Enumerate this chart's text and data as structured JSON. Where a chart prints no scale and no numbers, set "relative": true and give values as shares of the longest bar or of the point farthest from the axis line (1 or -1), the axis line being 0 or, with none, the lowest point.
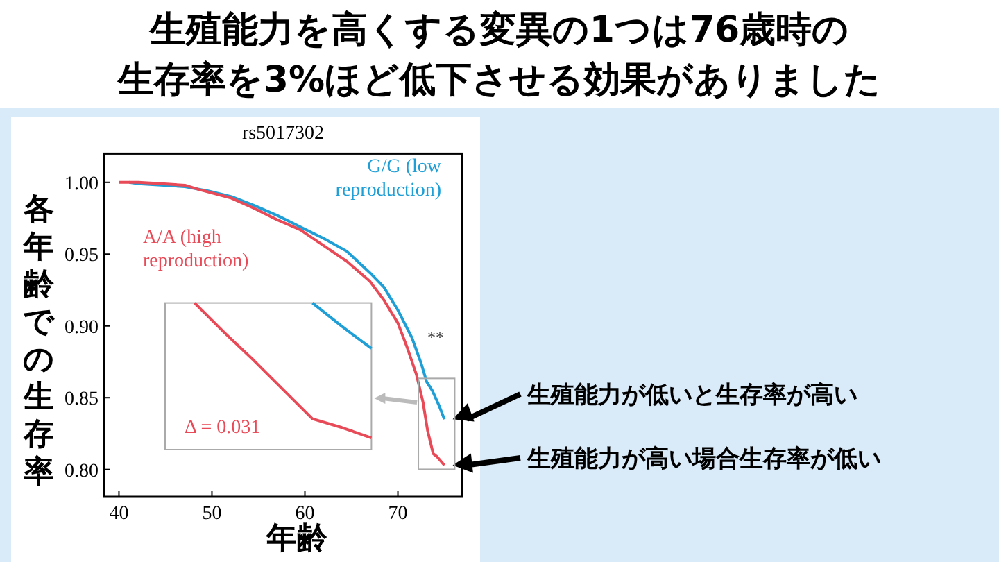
{
  "chart_data": [
    {
      "type": "line",
      "title": "生殖能力を高くする変異の1つは76歳時の生存率を3%ほど低下させる効果がありました",
      "subtitle": "rs5017302",
      "xlabel": "年齢",
      "ylabel": "各年齢での生存率",
      "xlim": [
        38.4,
        76.9
      ],
      "ylim": [
        0.781,
        1.02
      ],
      "xticks": [
        40,
        50,
        60,
        70
      ],
      "yticks": [
        {
          "value": 0.8,
          "label": "0.80"
        },
        {
          "value": 0.85,
          "label": "0.85"
        },
        {
          "value": 0.9,
          "label": "0.90"
        },
        {
          "value": 0.95,
          "label": "0.95"
        },
        {
          "value": 1,
          "label": "1.00"
        }
      ],
      "grid": false,
      "series": [
        {
          "name": "G/G (low reproduction)",
          "color": "#1f9fd6",
          "x": [
            41.1,
            42.1,
            47.1,
            49.6,
            52.1,
            54.5,
            57,
            59.5,
            62,
            64.5,
            67,
            68.5,
            70,
            71.5,
            72.5,
            73.1,
            73.7,
            74.4,
            75
          ],
          "values": [
            1,
            0.999,
            0.997,
            0.994,
            0.99,
            0.984,
            0.977,
            0.969,
            0.961,
            0.952,
            0.937,
            0.927,
            0.911,
            0.892,
            0.874,
            0.861,
            0.855,
            0.845,
            0.835
          ]
        },
        {
          "name": "A/A (high reproduction)",
          "color": "#e84a57",
          "x": [
            40,
            42.1,
            44.6,
            47.1,
            48.6,
            52.1,
            54.5,
            57,
            59.5,
            62,
            64.5,
            67,
            68.5,
            70,
            71,
            72,
            72.7,
            73.2,
            73.8,
            74.2,
            75
          ],
          "values": [
            1,
            1,
            0.999,
            0.998,
            0.995,
            0.989,
            0.982,
            0.974,
            0.967,
            0.956,
            0.945,
            0.931,
            0.918,
            0.902,
            0.885,
            0.866,
            0.847,
            0.827,
            0.811,
            0.809,
            0.803
          ]
        }
      ],
      "annotations": [
        "**",
        "生殖能力が低いと生存率が高い",
        "生殖能力が高い場合生存率が低い"
      ]
    },
    {
      "type": "line",
      "relative": true,
      "categories": [
        null,
        null,
        null,
        null,
        null,
        null,
        null,
        null
      ],
      "series": [
        {
          "color": "#1f9fd6",
          "values": [
            null,
            null,
            null,
            null,
            null,
            1,
            0.84,
            0.69
          ]
        },
        {
          "color": "#e84a57",
          "values": [
            null,
            1,
            0.8,
            0.61,
            0.41,
            0.21,
            0.15,
            0.08
          ]
        }
      ],
      "annotations": [
        "Δ = 0.031"
      ]
    }
  ]
}
